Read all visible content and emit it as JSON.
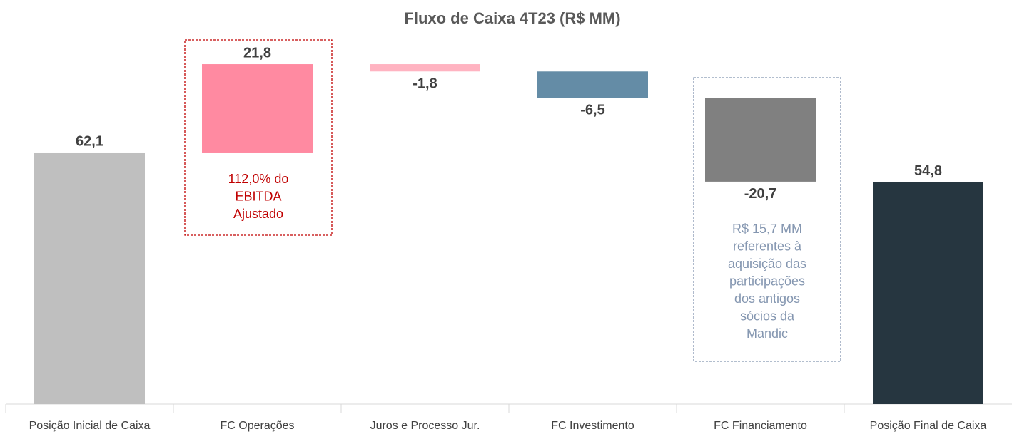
{
  "chart_data": {
    "type": "waterfall",
    "title": "Fluxo de Caixa 4T23 (R$ MM)",
    "categories": [
      "Posição Inicial de Caixa",
      "FC Operações",
      "Juros e Processo Jur.",
      "FC Investimento",
      "FC Financiamento",
      "Posição Final de Caixa"
    ],
    "values": [
      62.1,
      21.8,
      -1.8,
      -6.5,
      -20.7,
      54.8
    ],
    "value_labels": [
      "62,1",
      "21,8",
      "-1,8",
      "-6,5",
      "-20,7",
      "54,8"
    ],
    "measure": [
      "absolute",
      "relative",
      "relative",
      "relative",
      "relative",
      "absolute"
    ],
    "colors": [
      "#bfbfbf",
      "#ff8aa1",
      "#ffb3c1",
      "#648ca6",
      "#808080",
      "#263640"
    ],
    "ylim": [
      0,
      92
    ],
    "annotations": [
      {
        "lines": [
          "112,0% do",
          "EBITDA",
          "Ajustado"
        ],
        "color": "#c00000"
      },
      {
        "lines": [
          "R$ 15,7 MM",
          "referentes à",
          "aquisição das",
          "participações",
          "dos antigos",
          "sócios da",
          "Mandic"
        ],
        "color": "#8496b0"
      }
    ]
  }
}
